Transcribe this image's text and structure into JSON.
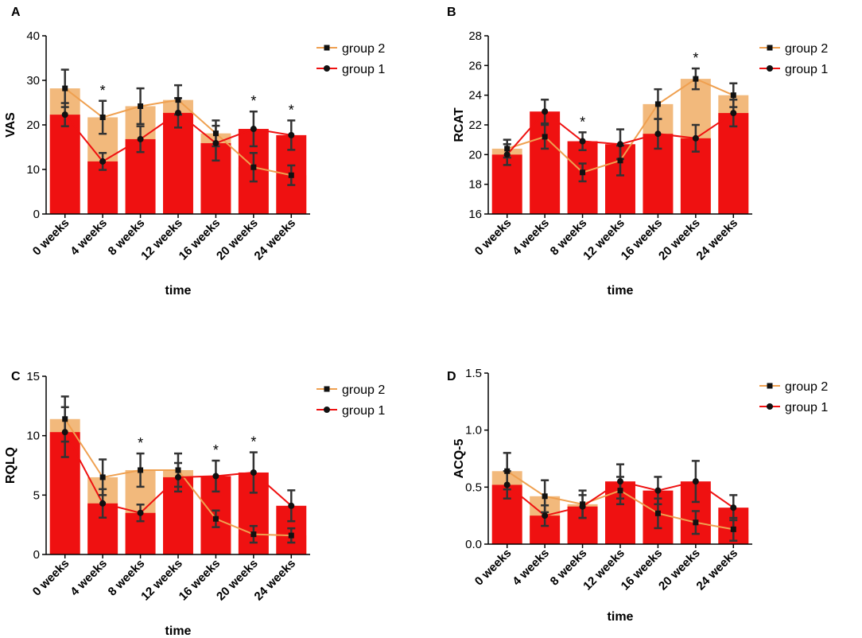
{
  "colors": {
    "group1": "#ef1111",
    "group2": "#f2b97c",
    "group2_line": "#efa050",
    "error_bar": "#333333",
    "axis": "#000000"
  },
  "legend": {
    "group2": "group 2",
    "group1": "group 1"
  },
  "chart_data": [
    {
      "panel": "A",
      "type": "bar",
      "title": "",
      "xlabel": "time",
      "ylabel": "VAS",
      "ylim": [
        0,
        40
      ],
      "yticks": [
        0,
        10,
        20,
        30,
        40
      ],
      "categories": [
        "0 weeks",
        "4 weeks",
        "8 weeks",
        "12 weeks",
        "16 weeks",
        "20 weeks",
        "24 weeks"
      ],
      "series": [
        {
          "name": "group 2",
          "values": [
            28.2,
            21.7,
            24.2,
            25.6,
            18.1,
            10.5,
            8.7
          ],
          "errors": [
            4.2,
            3.7,
            4.0,
            3.3,
            2.9,
            3.2,
            2.2
          ]
        },
        {
          "name": "group 1",
          "values": [
            22.3,
            11.8,
            16.8,
            22.7,
            15.9,
            19.1,
            17.7
          ],
          "errors": [
            2.6,
            1.9,
            2.9,
            3.3,
            3.9,
            3.9,
            3.3
          ]
        }
      ],
      "significant": [
        false,
        true,
        false,
        false,
        false,
        true,
        true
      ]
    },
    {
      "panel": "B",
      "type": "bar",
      "title": "",
      "xlabel": "time",
      "ylabel": "RCAT",
      "ylim": [
        16,
        28
      ],
      "yticks": [
        16,
        18,
        20,
        22,
        24,
        26,
        28
      ],
      "categories": [
        "0 weeks",
        "4 weeks",
        "8 weeks",
        "12 weeks",
        "16 weeks",
        "20 weeks",
        "24 weeks"
      ],
      "series": [
        {
          "name": "group 2",
          "values": [
            20.4,
            21.2,
            18.8,
            19.6,
            23.4,
            25.1,
            24.0
          ],
          "errors": [
            0.6,
            0.8,
            0.6,
            1.0,
            1.0,
            0.7,
            0.8
          ]
        },
        {
          "name": "group 1",
          "values": [
            20.0,
            22.9,
            20.9,
            20.7,
            21.4,
            21.1,
            22.8
          ],
          "errors": [
            0.7,
            0.8,
            0.6,
            1.0,
            1.0,
            0.9,
            0.9
          ]
        }
      ],
      "significant": [
        false,
        false,
        true,
        false,
        false,
        true,
        false
      ]
    },
    {
      "panel": "C",
      "type": "bar",
      "title": "",
      "xlabel": "time",
      "ylabel": "RQLQ",
      "ylim": [
        0,
        15
      ],
      "yticks": [
        0,
        5,
        10,
        15
      ],
      "categories": [
        "0 weeks",
        "4 weeks",
        "8 weeks",
        "12 weeks",
        "16 weeks",
        "20 weeks",
        "24 weeks"
      ],
      "series": [
        {
          "name": "group 2",
          "values": [
            11.4,
            6.5,
            7.1,
            7.1,
            3.0,
            1.7,
            1.6
          ],
          "errors": [
            1.9,
            1.5,
            1.4,
            1.4,
            0.7,
            0.7,
            0.6
          ]
        },
        {
          "name": "group 1",
          "values": [
            10.3,
            4.3,
            3.5,
            6.5,
            6.6,
            6.9,
            4.1
          ],
          "errors": [
            2.1,
            1.2,
            0.7,
            1.2,
            1.3,
            1.7,
            1.3
          ]
        }
      ],
      "significant": [
        false,
        false,
        true,
        false,
        true,
        true,
        false
      ]
    },
    {
      "panel": "D",
      "type": "bar",
      "title": "",
      "xlabel": "time",
      "ylabel": "ACQ-5",
      "ylim": [
        0,
        1.5
      ],
      "yticks": [
        0.0,
        0.5,
        1.0,
        1.5
      ],
      "categories": [
        "0 weeks",
        "4 weeks",
        "8 weeks",
        "12 weeks",
        "16 weeks",
        "20 weeks",
        "24 weeks"
      ],
      "series": [
        {
          "name": "group 2",
          "values": [
            0.64,
            0.42,
            0.35,
            0.47,
            0.27,
            0.19,
            0.13
          ],
          "errors": [
            0.16,
            0.14,
            0.12,
            0.12,
            0.13,
            0.1,
            0.1
          ]
        },
        {
          "name": "group 1",
          "values": [
            0.52,
            0.25,
            0.33,
            0.55,
            0.47,
            0.55,
            0.32
          ],
          "errors": [
            0.12,
            0.09,
            0.1,
            0.15,
            0.12,
            0.18,
            0.11
          ]
        }
      ],
      "significant": [
        false,
        false,
        false,
        false,
        false,
        false,
        false
      ]
    }
  ]
}
